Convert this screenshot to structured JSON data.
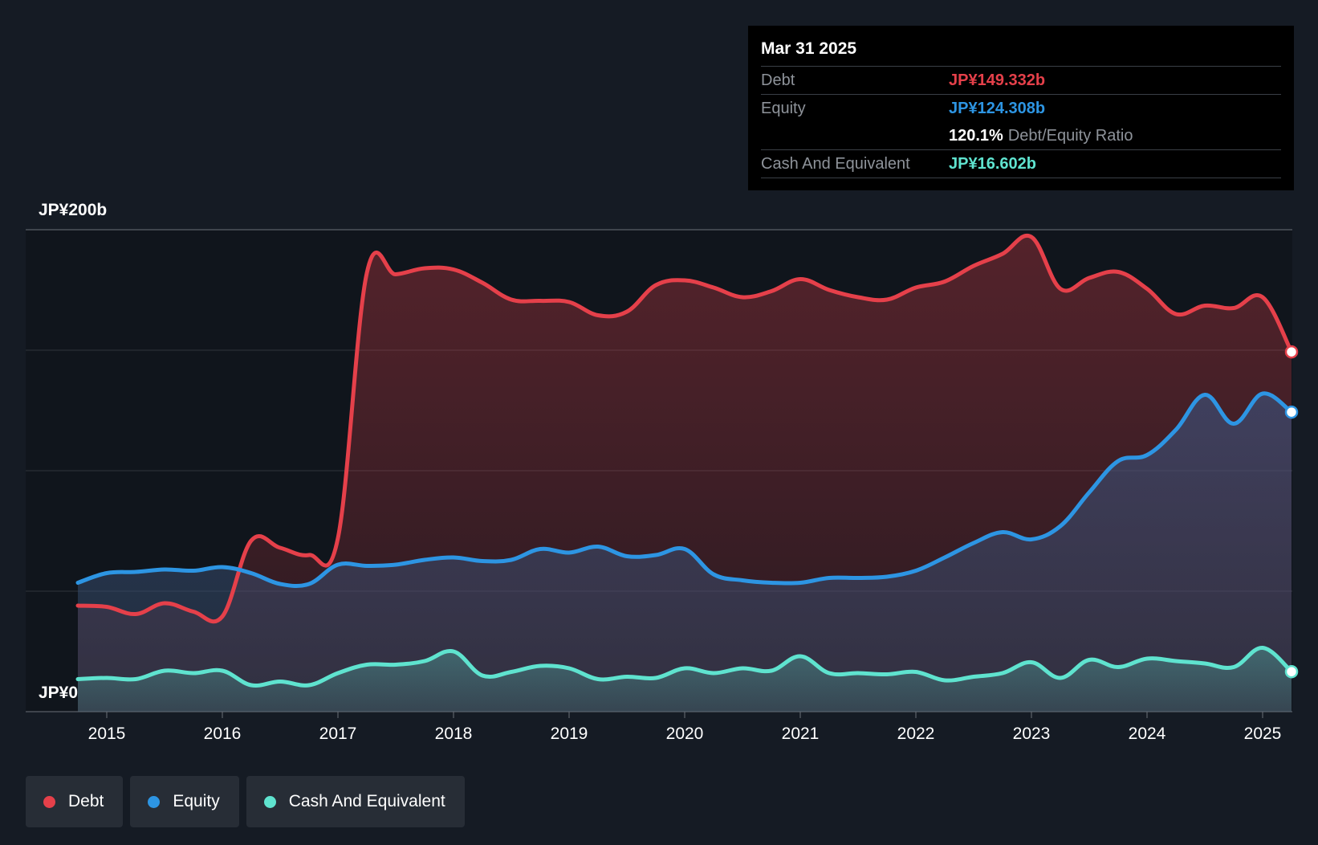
{
  "tooltip": {
    "date": "Mar 31 2025",
    "debt_label": "Debt",
    "debt_value": "JP¥149.332b",
    "equity_label": "Equity",
    "equity_value": "JP¥124.308b",
    "ratio_value": "120.1%",
    "ratio_label": "Debt/Equity Ratio",
    "cash_label": "Cash And Equivalent",
    "cash_value": "JP¥16.602b"
  },
  "legend": {
    "debt": "Debt",
    "equity": "Equity",
    "cash": "Cash And Equivalent"
  },
  "colors": {
    "debt": "#e5404a",
    "equity": "#2d95e3",
    "cash": "#5fe3cf",
    "background": "#151b24"
  },
  "chart_data": {
    "type": "area",
    "ylim": [
      0,
      200
    ],
    "y_tick_labels": {
      "top": "JP¥200b",
      "bottom": "JP¥0"
    },
    "x_ticks": [
      2015,
      2016,
      2017,
      2018,
      2019,
      2020,
      2021,
      2022,
      2023,
      2024,
      2025
    ],
    "x_tick_labels": [
      "2015",
      "2016",
      "2017",
      "2018",
      "2019",
      "2020",
      "2021",
      "2022",
      "2023",
      "2024",
      "2025"
    ],
    "grid": true,
    "series": [
      {
        "name": "Debt",
        "points": [
          [
            2014.75,
            44
          ],
          [
            2015.0,
            43.5
          ],
          [
            2015.25,
            40.5
          ],
          [
            2015.5,
            45
          ],
          [
            2015.75,
            41.5
          ],
          [
            2016.0,
            39.5
          ],
          [
            2016.25,
            71
          ],
          [
            2016.5,
            68
          ],
          [
            2016.75,
            65
          ],
          [
            2017.0,
            72
          ],
          [
            2017.25,
            182
          ],
          [
            2017.5,
            181.5
          ],
          [
            2017.75,
            184
          ],
          [
            2018.0,
            183.5
          ],
          [
            2018.25,
            178
          ],
          [
            2018.5,
            171
          ],
          [
            2018.75,
            170.5
          ],
          [
            2019.0,
            170
          ],
          [
            2019.25,
            164.5
          ],
          [
            2019.5,
            166
          ],
          [
            2019.75,
            177
          ],
          [
            2020.0,
            179
          ],
          [
            2020.25,
            176
          ],
          [
            2020.5,
            172
          ],
          [
            2020.75,
            174.5
          ],
          [
            2021.0,
            179.5
          ],
          [
            2021.25,
            175
          ],
          [
            2021.5,
            172
          ],
          [
            2021.75,
            171
          ],
          [
            2022.0,
            176
          ],
          [
            2022.25,
            178.5
          ],
          [
            2022.5,
            185
          ],
          [
            2022.75,
            190
          ],
          [
            2023.0,
            197
          ],
          [
            2023.25,
            175.5
          ],
          [
            2023.5,
            180
          ],
          [
            2023.75,
            182.5
          ],
          [
            2024.0,
            175.5
          ],
          [
            2024.25,
            165
          ],
          [
            2024.5,
            168.5
          ],
          [
            2024.75,
            167.5
          ],
          [
            2025.0,
            172
          ],
          [
            2025.25,
            149.3
          ]
        ]
      },
      {
        "name": "Equity",
        "points": [
          [
            2014.75,
            53.5
          ],
          [
            2015.0,
            57.5
          ],
          [
            2015.25,
            58
          ],
          [
            2015.5,
            59
          ],
          [
            2015.75,
            58.5
          ],
          [
            2016.0,
            60
          ],
          [
            2016.25,
            57.5
          ],
          [
            2016.5,
            53
          ],
          [
            2016.75,
            53
          ],
          [
            2017.0,
            61
          ],
          [
            2017.25,
            60.5
          ],
          [
            2017.5,
            61
          ],
          [
            2017.75,
            63
          ],
          [
            2018.0,
            64
          ],
          [
            2018.25,
            62.5
          ],
          [
            2018.5,
            63
          ],
          [
            2018.75,
            67.5
          ],
          [
            2019.0,
            66
          ],
          [
            2019.25,
            68.5
          ],
          [
            2019.5,
            64.5
          ],
          [
            2019.75,
            65
          ],
          [
            2020.0,
            67.5
          ],
          [
            2020.25,
            57
          ],
          [
            2020.5,
            54.5
          ],
          [
            2020.75,
            53.5
          ],
          [
            2021.0,
            53.5
          ],
          [
            2021.25,
            55.5
          ],
          [
            2021.5,
            55.5
          ],
          [
            2021.75,
            56
          ],
          [
            2022.0,
            58.5
          ],
          [
            2022.25,
            64
          ],
          [
            2022.5,
            70
          ],
          [
            2022.75,
            74.5
          ],
          [
            2023.0,
            71.5
          ],
          [
            2023.25,
            77
          ],
          [
            2023.5,
            91
          ],
          [
            2023.75,
            104
          ],
          [
            2024.0,
            106.5
          ],
          [
            2024.25,
            117
          ],
          [
            2024.5,
            131.5
          ],
          [
            2024.75,
            119.5
          ],
          [
            2025.0,
            132
          ],
          [
            2025.25,
            124.3
          ]
        ]
      },
      {
        "name": "Cash And Equivalent",
        "points": [
          [
            2014.75,
            13.5
          ],
          [
            2015.0,
            14
          ],
          [
            2015.25,
            13.5
          ],
          [
            2015.5,
            17
          ],
          [
            2015.75,
            16
          ],
          [
            2016.0,
            17
          ],
          [
            2016.25,
            11
          ],
          [
            2016.5,
            12.5
          ],
          [
            2016.75,
            11
          ],
          [
            2017.0,
            16
          ],
          [
            2017.25,
            19.5
          ],
          [
            2017.5,
            19.5
          ],
          [
            2017.75,
            21
          ],
          [
            2018.0,
            25
          ],
          [
            2018.25,
            15
          ],
          [
            2018.5,
            16.5
          ],
          [
            2018.75,
            19
          ],
          [
            2019.0,
            18
          ],
          [
            2019.25,
            13.5
          ],
          [
            2019.5,
            14.5
          ],
          [
            2019.75,
            14
          ],
          [
            2020.0,
            18
          ],
          [
            2020.25,
            16
          ],
          [
            2020.5,
            18
          ],
          [
            2020.75,
            17
          ],
          [
            2021.0,
            23
          ],
          [
            2021.25,
            16
          ],
          [
            2021.5,
            16
          ],
          [
            2021.75,
            15.5
          ],
          [
            2022.0,
            16.5
          ],
          [
            2022.25,
            13
          ],
          [
            2022.5,
            14.5
          ],
          [
            2022.75,
            16
          ],
          [
            2023.0,
            20.5
          ],
          [
            2023.25,
            14
          ],
          [
            2023.5,
            21.5
          ],
          [
            2023.75,
            18.5
          ],
          [
            2024.0,
            22
          ],
          [
            2024.25,
            21
          ],
          [
            2024.5,
            20
          ],
          [
            2024.75,
            18.5
          ],
          [
            2025.0,
            26.5
          ],
          [
            2025.25,
            16.6
          ]
        ]
      }
    ]
  }
}
